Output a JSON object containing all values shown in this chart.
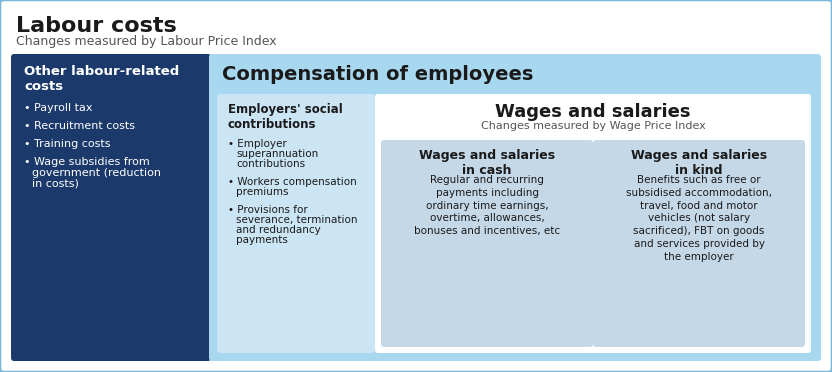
{
  "title": "Labour costs",
  "subtitle": "Changes measured by Labour Price Index",
  "outer_border_color": "#7ab8d8",
  "background_color": "#ffffff",
  "box1": {
    "title": "Other labour-related\ncosts",
    "bg_color": "#1b3a6b",
    "text_color": "#ffffff",
    "title_color": "#ffffff",
    "bullets": [
      "Payroll tax",
      "Recruitment costs",
      "Training costs",
      "Wage subsidies from\ngovernment (reduction\nin costs)"
    ]
  },
  "box2": {
    "title": "Compensation of employees",
    "bg_color": "#a8d8f0",
    "text_color": "#1a1a1a",
    "title_color": "#1a1a1a"
  },
  "box3": {
    "title": "Employers' social\ncontributions",
    "bg_color": "#cce5f5",
    "text_color": "#1a1a1a",
    "title_color": "#1a1a1a",
    "bullets": [
      "Employer\nsuperannuation\ncontributions",
      "Workers compensation\npremiums",
      "Provisions for\nseverance, termination\nand redundancy\npayments"
    ]
  },
  "box4": {
    "title": "Wages and salaries",
    "subtitle": "Changes measured by Wage Price Index",
    "bg_color": "#ffffff",
    "text_color": "#1a1a1a",
    "title_color": "#1a1a1a"
  },
  "box5": {
    "title": "Wages and salaries\nin cash",
    "bg_color": "#c5d8e8",
    "text_color": "#1a1a1a",
    "title_color": "#1a1a1a",
    "body": "Regular and recurring\npayments including\nordinary time earnings,\novertime, allowances,\nbonuses and incentives, etc"
  },
  "box6": {
    "title": "Wages and salaries\nin kind",
    "bg_color": "#c5d8e8",
    "text_color": "#1a1a1a",
    "title_color": "#1a1a1a",
    "body": "Benefits such as free or\nsubsidised accommodation,\ntravel, food and motor\nvehicles (not salary\nsacrificed), FBT on goods\nand services provided by\nthe employer"
  }
}
